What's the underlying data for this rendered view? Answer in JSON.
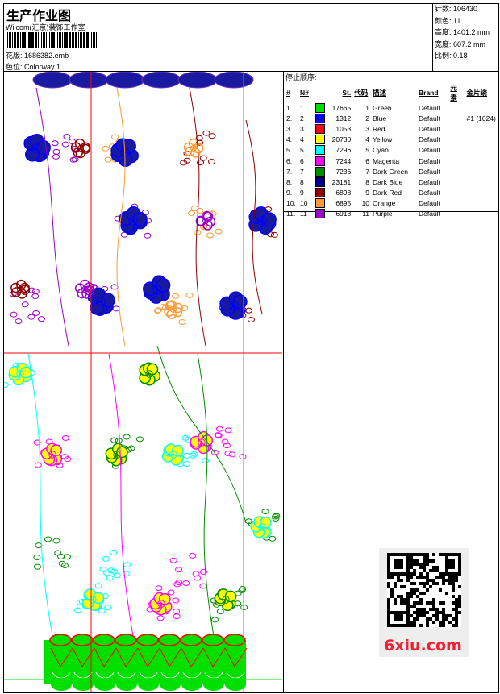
{
  "header": {
    "title": "生产作业图",
    "company": "Wilcom(汇京)装饰工作室",
    "design_label": "花版:",
    "design_file": "1686382.emb",
    "colorway_label": "色位:",
    "colorway": "Colorway 1"
  },
  "info": [
    {
      "label": "针数:",
      "value": "106430"
    },
    {
      "label": "颜色:",
      "value": "11"
    },
    {
      "label": "高度:",
      "value": "1401.2 mm"
    },
    {
      "label": "宽度:",
      "value": "607.2 mm"
    },
    {
      "label": "比例:",
      "value": "0.18"
    }
  ],
  "stop_sequence": {
    "caption": "停止顺序:",
    "columns": [
      "#",
      "N#",
      "",
      "St.",
      "代码",
      "描述",
      "Brand",
      "元素",
      "金片绣"
    ],
    "rows": [
      {
        "idx": "1.",
        "n": "1",
        "color": "#00e000",
        "st": "17665",
        "code": "1",
        "desc": "Green",
        "brand": "Default",
        "elem": "",
        "seq": ""
      },
      {
        "idx": "2.",
        "n": "2",
        "color": "#0000ff",
        "st": "1312",
        "code": "2",
        "desc": "Blue",
        "brand": "Default",
        "elem": "",
        "seq": "#1 (1024)"
      },
      {
        "idx": "3.",
        "n": "3",
        "color": "#ff0000",
        "st": "1053",
        "code": "3",
        "desc": "Red",
        "brand": "Default",
        "elem": "",
        "seq": ""
      },
      {
        "idx": "4.",
        "n": "4",
        "color": "#ffff00",
        "st": "20730",
        "code": "4",
        "desc": "Yellow",
        "brand": "Default",
        "elem": "",
        "seq": ""
      },
      {
        "idx": "5.",
        "n": "5",
        "color": "#00ffff",
        "st": "7296",
        "code": "5",
        "desc": "Cyan",
        "brand": "Default",
        "elem": "",
        "seq": ""
      },
      {
        "idx": "6.",
        "n": "6",
        "color": "#ff00ff",
        "st": "7244",
        "code": "6",
        "desc": "Magenta",
        "brand": "Default",
        "elem": "",
        "seq": ""
      },
      {
        "idx": "7.",
        "n": "7",
        "color": "#008c00",
        "st": "7236",
        "code": "7",
        "desc": "Dark Green",
        "brand": "Default",
        "elem": "",
        "seq": ""
      },
      {
        "idx": "8.",
        "n": "8",
        "color": "#000090",
        "st": "23181",
        "code": "8",
        "desc": "Dark Blue",
        "brand": "Default",
        "elem": "",
        "seq": ""
      },
      {
        "idx": "9.",
        "n": "9",
        "color": "#900000",
        "st": "6898",
        "code": "9",
        "desc": "Dark Red",
        "brand": "Default",
        "elem": "",
        "seq": ""
      },
      {
        "idx": "10.",
        "n": "10",
        "color": "#ff9933",
        "st": "6895",
        "code": "10",
        "desc": "Orange",
        "brand": "Default",
        "elem": "",
        "seq": ""
      },
      {
        "idx": "11.",
        "n": "11",
        "color": "#9900cc",
        "st": "6918",
        "code": "11",
        "desc": "Purple",
        "brand": "Default",
        "elem": "",
        "seq": ""
      }
    ]
  },
  "watermark": "6xiu.com"
}
